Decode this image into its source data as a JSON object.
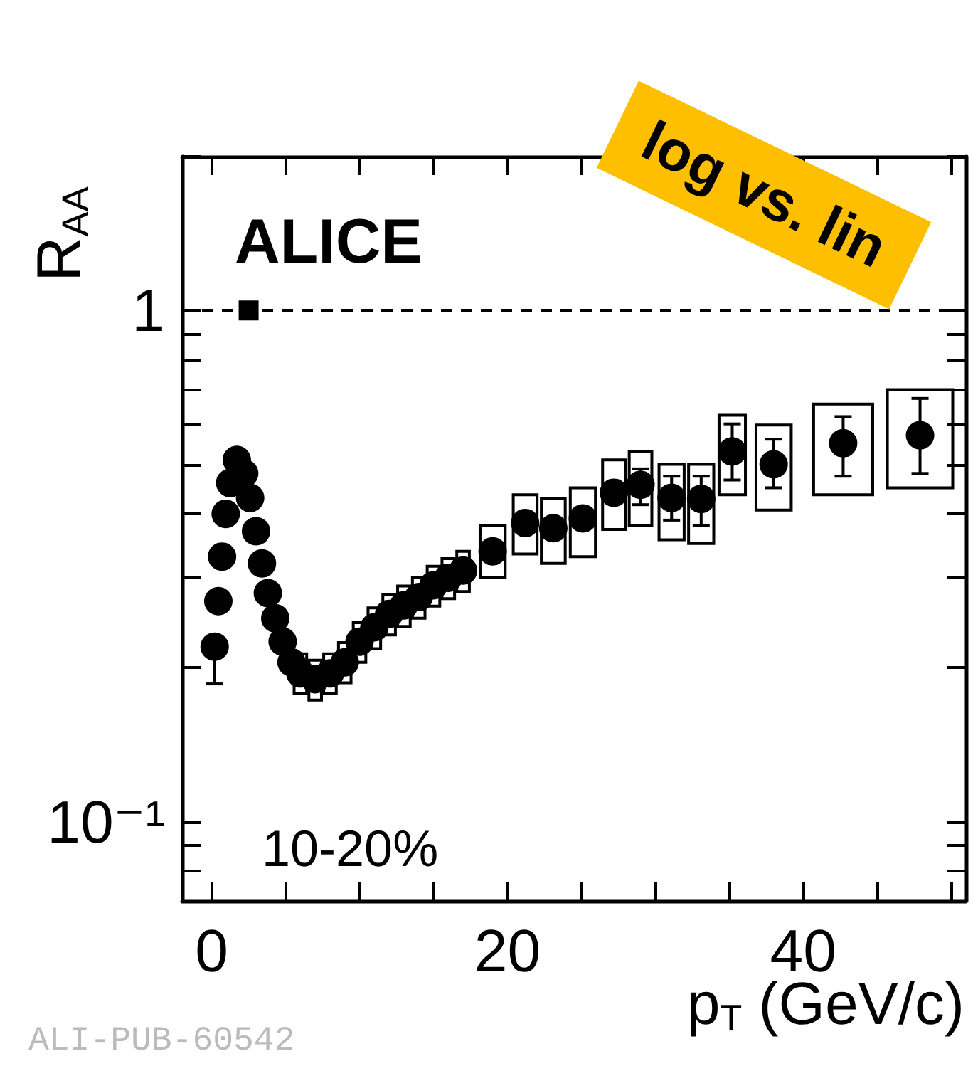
{
  "chart_data": {
    "type": "scatter",
    "xlabel": "p$_{T}$ (GeV/c)",
    "ylabel": "R$_{AA}$",
    "annotations": [
      "ALICE",
      "10-20%",
      "log vs. lin",
      "ALI-PUB-60542"
    ],
    "xlim": [
      -2,
      51
    ],
    "xticks": [
      0,
      {
        "value": 5,
        "label": null
      },
      {
        "value": 10,
        "label": null
      },
      {
        "value": 15,
        "label": null
      },
      20,
      {
        "value": 25,
        "label": null
      },
      {
        "value": 30,
        "label": null
      },
      {
        "value": 35,
        "label": null
      },
      40,
      {
        "value": 45,
        "label": null
      },
      {
        "value": 50,
        "label": null
      }
    ],
    "ylim": [
      0.07,
      2
    ],
    "log": "y",
    "yticks": [
      {
        "value": 0.08,
        "label": null
      },
      {
        "value": 0.09,
        "label": null
      },
      {
        "value": 0.1,
        "label": "10⁻¹"
      },
      {
        "value": 0.2,
        "label": null
      },
      {
        "value": 0.3,
        "label": null
      },
      {
        "value": 0.4,
        "label": null
      },
      {
        "value": 0.5,
        "label": null
      },
      {
        "value": 0.6,
        "label": null
      },
      {
        "value": 0.7,
        "label": null
      },
      {
        "value": 0.8,
        "label": null
      },
      {
        "value": 0.9,
        "label": null
      },
      1,
      {
        "value": 2,
        "label": null
      }
    ],
    "grid": false,
    "marker": "circle",
    "ref_lines": [
      {
        "axis": "y",
        "value": 1,
        "line_style": "dashed",
        "color": "#000000"
      }
    ],
    "series": [
      {
        "type": "bar",
        "color": "#000000",
        "x": [
          6.0,
          7.0,
          8.0,
          9.0,
          10,
          11,
          12,
          13,
          14,
          15,
          16,
          17,
          19,
          21.2,
          23.1,
          25.1,
          27.2,
          29.0,
          31.1,
          33.1,
          35.2,
          38.0,
          42.7,
          47.9
        ],
        "base": [
          0.178,
          0.173,
          0.178,
          0.187,
          0.205,
          0.218,
          0.232,
          0.241,
          0.25,
          0.264,
          0.273,
          0.282,
          0.3,
          0.334,
          0.32,
          0.33,
          0.373,
          0.38,
          0.356,
          0.35,
          0.436,
          0.407,
          0.436,
          0.45
        ],
        "values": [
          0.035,
          0.034,
          0.035,
          0.037,
          0.04,
          0.044,
          0.046,
          0.048,
          0.05,
          0.052,
          0.054,
          0.056,
          0.08,
          0.102,
          0.108,
          0.12,
          0.137,
          0.15,
          0.144,
          0.15,
          0.188,
          0.19,
          0.22,
          0.25
        ]
      },
      {
        "color": "#000000",
        "x": [
          0.2,
          0.45,
          0.7,
          0.95,
          1.25,
          1.7,
          2.2,
          2.6,
          3.0,
          3.4,
          3.8,
          4.3,
          4.8,
          5.4,
          6.0,
          7.0,
          8.0,
          9.0,
          10,
          11,
          12,
          13,
          14,
          15,
          16,
          17,
          19,
          21.2,
          23.1,
          25.1,
          27.2,
          29.0,
          31.1,
          33.1,
          35.2,
          38.0,
          42.7,
          47.9
        ],
        "values": [
          0.22,
          0.27,
          0.33,
          0.4,
          0.46,
          0.51,
          0.48,
          0.43,
          0.37,
          0.32,
          0.28,
          0.25,
          0.225,
          0.205,
          0.195,
          0.19,
          0.195,
          0.205,
          0.225,
          0.24,
          0.255,
          0.265,
          0.275,
          0.29,
          0.3,
          0.31,
          0.338,
          0.384,
          0.375,
          0.392,
          0.44,
          0.456,
          0.43,
          0.428,
          0.53,
          0.5,
          0.55,
          0.57
        ],
        "errors": [
          [
            0.186,
            0.22
          ],
          null,
          null,
          null,
          null,
          null,
          null,
          null,
          null,
          null,
          null,
          null,
          null,
          null,
          null,
          null,
          null,
          null,
          null,
          null,
          null,
          null,
          null,
          null,
          null,
          null,
          null,
          null,
          null,
          null,
          null,
          [
            0.417,
            0.49
          ],
          [
            0.389,
            0.474
          ],
          [
            0.38,
            0.474
          ],
          [
            0.466,
            0.6
          ],
          [
            0.45,
            0.56
          ],
          [
            0.474,
            0.62
          ],
          [
            0.48,
            0.673
          ]
        ]
      },
      {
        "marker": "square",
        "color": "#000000",
        "x": [
          2.5
        ],
        "values": [
          1
        ]
      }
    ]
  }
}
